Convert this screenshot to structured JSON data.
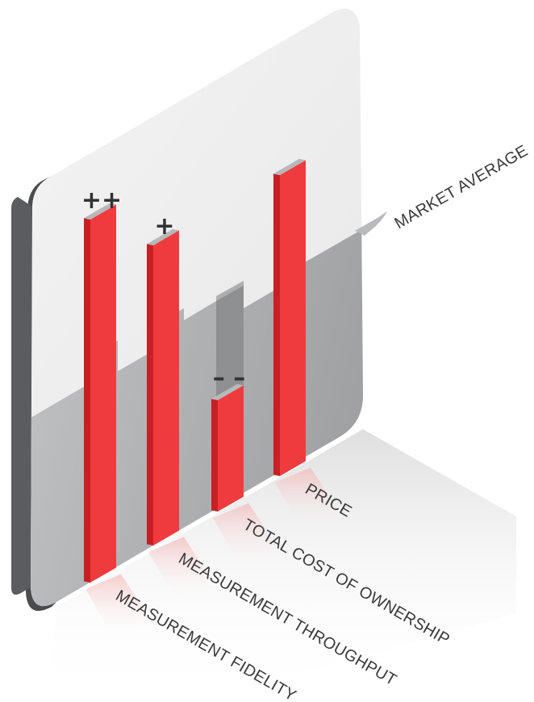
{
  "chart_data": {
    "type": "bar",
    "categories": [
      "MEASUREMENT FIDELITY",
      "MEASUREMENT THROUGHPUT",
      "TOTAL COST OF OWNERSHIP",
      "PRICE"
    ],
    "ratings": [
      "++",
      "+",
      "– –",
      ""
    ],
    "reference_label": "MARKET AVERAGE",
    "values_relative_to_average": [
      2,
      1,
      -2,
      1.5
    ],
    "colors": {
      "bar": "#f03b3e",
      "bar_side": "#c81f25",
      "panel_top": "#ededed",
      "panel_bottom": "#a9aaab",
      "panel_edge": "#4a4b4e"
    }
  }
}
